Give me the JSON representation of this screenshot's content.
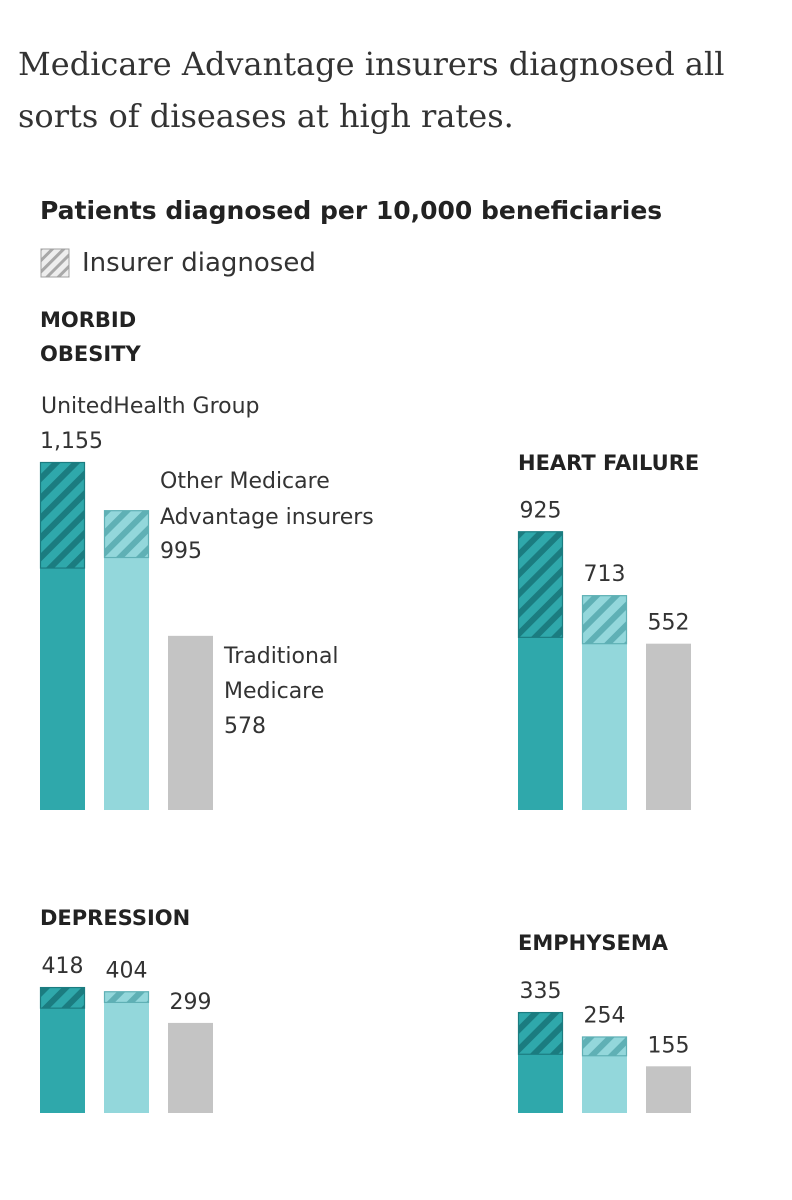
{
  "headline": "Medicare Advantage insurers diagnosed all sorts of diseases at high rates.",
  "chart_data": {
    "type": "bar",
    "title": "Patients diagnosed per 10,000 beneficiaries",
    "legend": {
      "label": "Insurer diagnosed",
      "position": "top-left"
    },
    "colors": {
      "unitedhealth": "#2fa8ab",
      "unitedhealth_hatch": "#1b7c80",
      "other_ma": "#93d7db",
      "other_ma_hatch": "#5fb0b5",
      "traditional": "#c4c4c4"
    },
    "panels": [
      {
        "title_lines": [
          "MORBID",
          "OBESITY"
        ],
        "bars": [
          {
            "name_lines": [
              "UnitedHealth Group"
            ],
            "label": "1,155",
            "total": 1155,
            "insurer_diagnosed": 352,
            "color": "#2fa8ab",
            "hatch": "#1b7c80"
          },
          {
            "name_lines": [
              "Other Medicare",
              "Advantage insurers"
            ],
            "label": "995",
            "total": 995,
            "insurer_diagnosed": 157,
            "color": "#93d7db",
            "hatch": "#5fb0b5"
          },
          {
            "name_lines": [
              "Traditional",
              "Medicare"
            ],
            "label": "578",
            "total": 578,
            "insurer_diagnosed": 0,
            "color": "#c4c4c4",
            "hatch": "#c4c4c4"
          }
        ]
      },
      {
        "title_lines": [
          "HEART FAILURE"
        ],
        "bars": [
          {
            "name_lines": [],
            "label": "925",
            "total": 925,
            "insurer_diagnosed": 352,
            "color": "#2fa8ab",
            "hatch": "#1b7c80"
          },
          {
            "name_lines": [],
            "label": "713",
            "total": 713,
            "insurer_diagnosed": 161,
            "color": "#93d7db",
            "hatch": "#5fb0b5"
          },
          {
            "name_lines": [],
            "label": "552",
            "total": 552,
            "insurer_diagnosed": 0,
            "color": "#c4c4c4",
            "hatch": "#c4c4c4"
          }
        ]
      },
      {
        "title_lines": [
          "DEPRESSION"
        ],
        "bars": [
          {
            "name_lines": [],
            "label": "418",
            "total": 418,
            "insurer_diagnosed": 70,
            "color": "#2fa8ab",
            "hatch": "#1b7c80"
          },
          {
            "name_lines": [],
            "label": "404",
            "total": 404,
            "insurer_diagnosed": 37,
            "color": "#93d7db",
            "hatch": "#5fb0b5"
          },
          {
            "name_lines": [],
            "label": "299",
            "total": 299,
            "insurer_diagnosed": 0,
            "color": "#c4c4c4",
            "hatch": "#c4c4c4"
          }
        ]
      },
      {
        "title_lines": [
          "EMPHYSEMA"
        ],
        "bars": [
          {
            "name_lines": [],
            "label": "335",
            "total": 335,
            "insurer_diagnosed": 140,
            "color": "#2fa8ab",
            "hatch": "#1b7c80"
          },
          {
            "name_lines": [],
            "label": "254",
            "total": 254,
            "insurer_diagnosed": 64,
            "color": "#93d7db",
            "hatch": "#5fb0b5"
          },
          {
            "name_lines": [],
            "label": "155",
            "total": 155,
            "insurer_diagnosed": 0,
            "color": "#c4c4c4",
            "hatch": "#c4c4c4"
          }
        ]
      }
    ]
  }
}
